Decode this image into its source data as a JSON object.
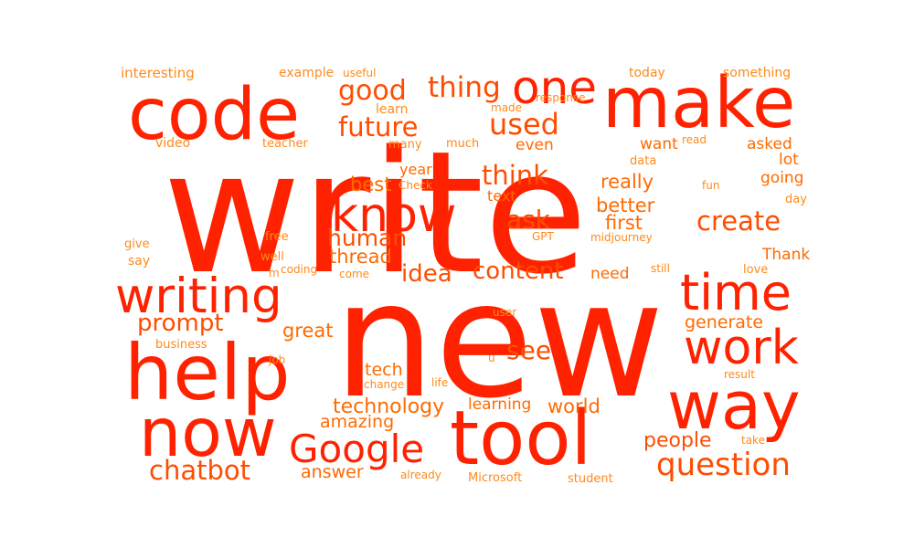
{
  "colors": {
    "background": "#ffffff",
    "primary": "#ff2200",
    "mid": "#ff4d00",
    "secondary": "#ff6a00",
    "tertiary": "#ff8a1a"
  },
  "words": [
    {
      "text": "write",
      "weight": 1.0,
      "tone": "primary"
    },
    {
      "text": "new",
      "weight": 0.93,
      "tone": "primary"
    },
    {
      "text": "code",
      "weight": 0.46,
      "tone": "primary"
    },
    {
      "text": "make",
      "weight": 0.46,
      "tone": "primary"
    },
    {
      "text": "help",
      "weight": 0.5,
      "tone": "primary"
    },
    {
      "text": "now",
      "weight": 0.43,
      "tone": "primary"
    },
    {
      "text": "tool",
      "weight": 0.49,
      "tone": "primary"
    },
    {
      "text": "way",
      "weight": 0.43,
      "tone": "primary"
    },
    {
      "text": "one",
      "weight": 0.3,
      "tone": "primary"
    },
    {
      "text": "know",
      "weight": 0.3,
      "tone": "primary"
    },
    {
      "text": "writing",
      "weight": 0.31,
      "tone": "primary"
    },
    {
      "text": "time",
      "weight": 0.31,
      "tone": "primary"
    },
    {
      "text": "work",
      "weight": 0.31,
      "tone": "primary"
    },
    {
      "text": "Google",
      "weight": 0.25,
      "tone": "primary"
    },
    {
      "text": "question",
      "weight": 0.2,
      "tone": "mid"
    },
    {
      "text": "chatbot",
      "weight": 0.17,
      "tone": "mid"
    },
    {
      "text": "good",
      "weight": 0.18,
      "tone": "mid"
    },
    {
      "text": "thing",
      "weight": 0.18,
      "tone": "mid"
    },
    {
      "text": "future",
      "weight": 0.17,
      "tone": "mid"
    },
    {
      "text": "used",
      "weight": 0.19,
      "tone": "mid"
    },
    {
      "text": "think",
      "weight": 0.17,
      "tone": "mid"
    },
    {
      "text": "create",
      "weight": 0.17,
      "tone": "mid"
    },
    {
      "text": "ask",
      "weight": 0.16,
      "tone": "mid"
    },
    {
      "text": "human",
      "weight": 0.14,
      "tone": "mid"
    },
    {
      "text": "content",
      "weight": 0.15,
      "tone": "mid"
    },
    {
      "text": "idea",
      "weight": 0.15,
      "tone": "mid"
    },
    {
      "text": "prompt",
      "weight": 0.15,
      "tone": "mid"
    },
    {
      "text": "see",
      "weight": 0.16,
      "tone": "mid"
    },
    {
      "text": "people",
      "weight": 0.13,
      "tone": "mid"
    },
    {
      "text": "technology",
      "weight": 0.13,
      "tone": "secondary"
    },
    {
      "text": "world",
      "weight": 0.12,
      "tone": "secondary"
    },
    {
      "text": "really",
      "weight": 0.12,
      "tone": "secondary"
    },
    {
      "text": "better",
      "weight": 0.12,
      "tone": "secondary"
    },
    {
      "text": "first",
      "weight": 0.12,
      "tone": "secondary"
    },
    {
      "text": "best",
      "weight": 0.12,
      "tone": "secondary"
    },
    {
      "text": "thread",
      "weight": 0.12,
      "tone": "secondary"
    },
    {
      "text": "great",
      "weight": 0.12,
      "tone": "secondary"
    },
    {
      "text": "generate",
      "weight": 0.11,
      "tone": "secondary"
    },
    {
      "text": "tech",
      "weight": 0.11,
      "tone": "secondary"
    },
    {
      "text": "amazing",
      "weight": 0.11,
      "tone": "secondary"
    },
    {
      "text": "answer",
      "weight": 0.11,
      "tone": "secondary"
    },
    {
      "text": "need",
      "weight": 0.1,
      "tone": "secondary"
    },
    {
      "text": "going",
      "weight": 0.1,
      "tone": "secondary"
    },
    {
      "text": "asked",
      "weight": 0.1,
      "tone": "secondary"
    },
    {
      "text": "lot",
      "weight": 0.1,
      "tone": "secondary"
    },
    {
      "text": "Thank",
      "weight": 0.1,
      "tone": "secondary"
    },
    {
      "text": "learning",
      "weight": 0.1,
      "tone": "secondary"
    },
    {
      "text": "want",
      "weight": 0.1,
      "tone": "secondary"
    },
    {
      "text": "even",
      "weight": 0.1,
      "tone": "secondary"
    },
    {
      "text": "year",
      "weight": 0.09,
      "tone": "secondary"
    },
    {
      "text": "text",
      "weight": 0.09,
      "tone": "secondary"
    },
    {
      "text": "interesting",
      "weight": 0.09,
      "tone": "tertiary"
    },
    {
      "text": "example",
      "weight": 0.08,
      "tone": "tertiary"
    },
    {
      "text": "useful",
      "weight": 0.07,
      "tone": "tertiary"
    },
    {
      "text": "today",
      "weight": 0.08,
      "tone": "tertiary"
    },
    {
      "text": "something",
      "weight": 0.08,
      "tone": "tertiary"
    },
    {
      "text": "response",
      "weight": 0.07,
      "tone": "tertiary"
    },
    {
      "text": "learn",
      "weight": 0.08,
      "tone": "tertiary"
    },
    {
      "text": "made",
      "weight": 0.07,
      "tone": "tertiary"
    },
    {
      "text": "video",
      "weight": 0.08,
      "tone": "tertiary"
    },
    {
      "text": "teacher",
      "weight": 0.07,
      "tone": "tertiary"
    },
    {
      "text": "many",
      "weight": 0.08,
      "tone": "tertiary"
    },
    {
      "text": "much",
      "weight": 0.08,
      "tone": "tertiary"
    },
    {
      "text": "read",
      "weight": 0.07,
      "tone": "tertiary"
    },
    {
      "text": "data",
      "weight": 0.07,
      "tone": "tertiary"
    },
    {
      "text": "Check",
      "weight": 0.07,
      "tone": "tertiary"
    },
    {
      "text": "fun",
      "weight": 0.07,
      "tone": "tertiary"
    },
    {
      "text": "day",
      "weight": 0.07,
      "tone": "tertiary"
    },
    {
      "text": "free",
      "weight": 0.07,
      "tone": "tertiary"
    },
    {
      "text": "GPT",
      "weight": 0.07,
      "tone": "tertiary"
    },
    {
      "text": "midjourney",
      "weight": 0.07,
      "tone": "tertiary"
    },
    {
      "text": "give",
      "weight": 0.07,
      "tone": "tertiary"
    },
    {
      "text": "well",
      "weight": 0.07,
      "tone": "tertiary"
    },
    {
      "text": "say",
      "weight": 0.08,
      "tone": "tertiary"
    },
    {
      "text": "m",
      "weight": 0.07,
      "tone": "tertiary"
    },
    {
      "text": "coding",
      "weight": 0.07,
      "tone": "tertiary"
    },
    {
      "text": "come",
      "weight": 0.07,
      "tone": "tertiary"
    },
    {
      "text": "still",
      "weight": 0.07,
      "tone": "tertiary"
    },
    {
      "text": "love",
      "weight": 0.07,
      "tone": "tertiary"
    },
    {
      "text": "user",
      "weight": 0.07,
      "tone": "tertiary"
    },
    {
      "text": "business",
      "weight": 0.07,
      "tone": "tertiary"
    },
    {
      "text": "u",
      "weight": 0.07,
      "tone": "tertiary"
    },
    {
      "text": "job",
      "weight": 0.07,
      "tone": "tertiary"
    },
    {
      "text": "change",
      "weight": 0.07,
      "tone": "tertiary"
    },
    {
      "text": "life",
      "weight": 0.07,
      "tone": "tertiary"
    },
    {
      "text": "result",
      "weight": 0.07,
      "tone": "tertiary"
    },
    {
      "text": "take",
      "weight": 0.07,
      "tone": "tertiary"
    },
    {
      "text": "already",
      "weight": 0.07,
      "tone": "tertiary"
    },
    {
      "text": "Microsoft",
      "weight": 0.07,
      "tone": "tertiary"
    },
    {
      "text": "student",
      "weight": 0.07,
      "tone": "tertiary"
    }
  ]
}
